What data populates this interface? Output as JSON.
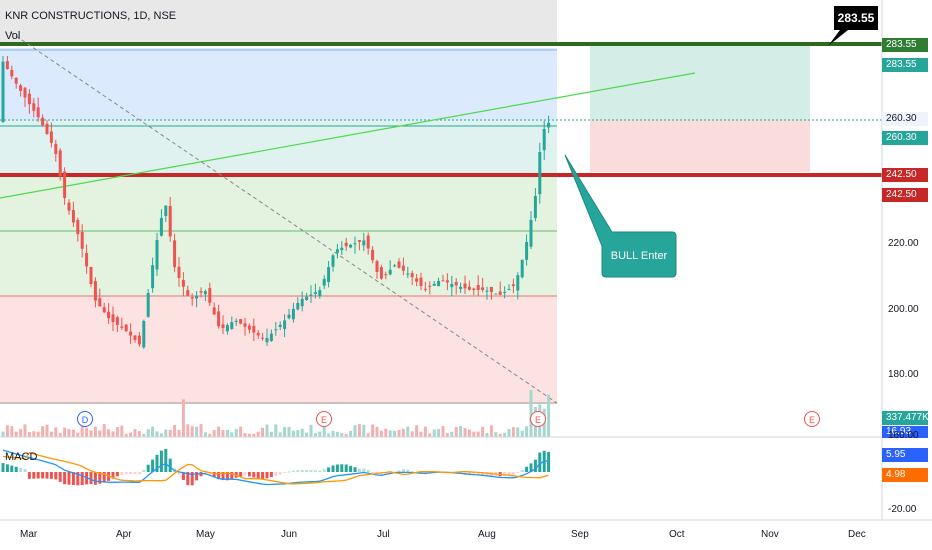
{
  "header": {
    "symbol_line": "KNR CONSTRUCTIONS, 1D, NSE",
    "volume_label": "Vol",
    "macd_label": "MACD"
  },
  "callouts": {
    "bull_enter": "BULL Enter",
    "target_box": "283.55"
  },
  "price_axis": {
    "ticks": [
      "220.00",
      "200.00",
      "180.00"
    ]
  },
  "price_tags": [
    {
      "value": "283.55",
      "color": "#2e7d32"
    },
    {
      "value": "283.55",
      "color": "#26a69a"
    },
    {
      "value": "260.30",
      "color": "#f0f3fa"
    },
    {
      "value": "260.30",
      "color": "#26a69a"
    },
    {
      "value": "242.50",
      "color": "#c62828"
    },
    {
      "value": "242.50",
      "color": "#c62828"
    }
  ],
  "volume_tag": {
    "value": "337.477K",
    "color": "#26a69a"
  },
  "macd_axis": {
    "top_value": "16.93",
    "tick_160": "160.00",
    "value_1": "5.95",
    "value_2": "4.98",
    "low_tick": "-20.00"
  },
  "time_axis": {
    "months": [
      "Mar",
      "Apr",
      "May",
      "Jun",
      "Jul",
      "Aug",
      "Sep",
      "Oct",
      "Nov",
      "Dec"
    ]
  },
  "events": [
    {
      "label": "D",
      "color": "#2962ff"
    },
    {
      "label": "E",
      "color": "#ef5350"
    },
    {
      "label": "E",
      "color": "#ef5350"
    },
    {
      "label": "E",
      "color": "#ef5350"
    }
  ],
  "colors": {
    "up": "#26a69a",
    "down": "#ef5350",
    "green_zone": "#c8e6c9",
    "red_zone": "#ffcdd2",
    "blue_zone": "#bbdefb"
  }
}
